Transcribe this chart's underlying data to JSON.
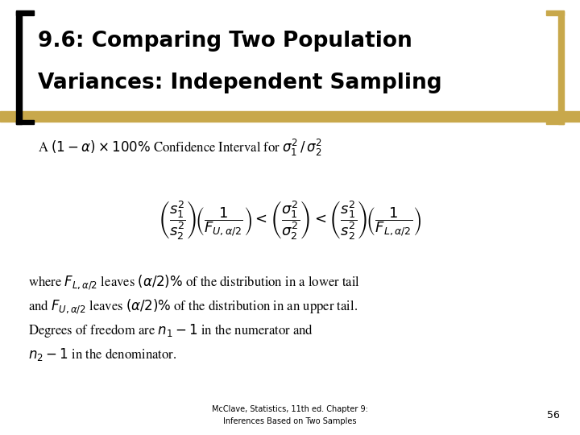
{
  "title_line1": "9.6: Comparing Two Population",
  "title_line2": "Variances: Independent Sampling",
  "title_color": "#000000",
  "title_band_color": "#c8a84b",
  "bg_color": "#ffffff",
  "footer_line1": "McClave, Statistics, 11th ed. Chapter 9:",
  "footer_line2": "Inferences Based on Two Samples",
  "page_number": "56",
  "title_fontsize": 19,
  "subtitle_fontsize": 12,
  "formula_fontsize": 13,
  "body_fontsize": 12,
  "footer_fontsize": 7
}
